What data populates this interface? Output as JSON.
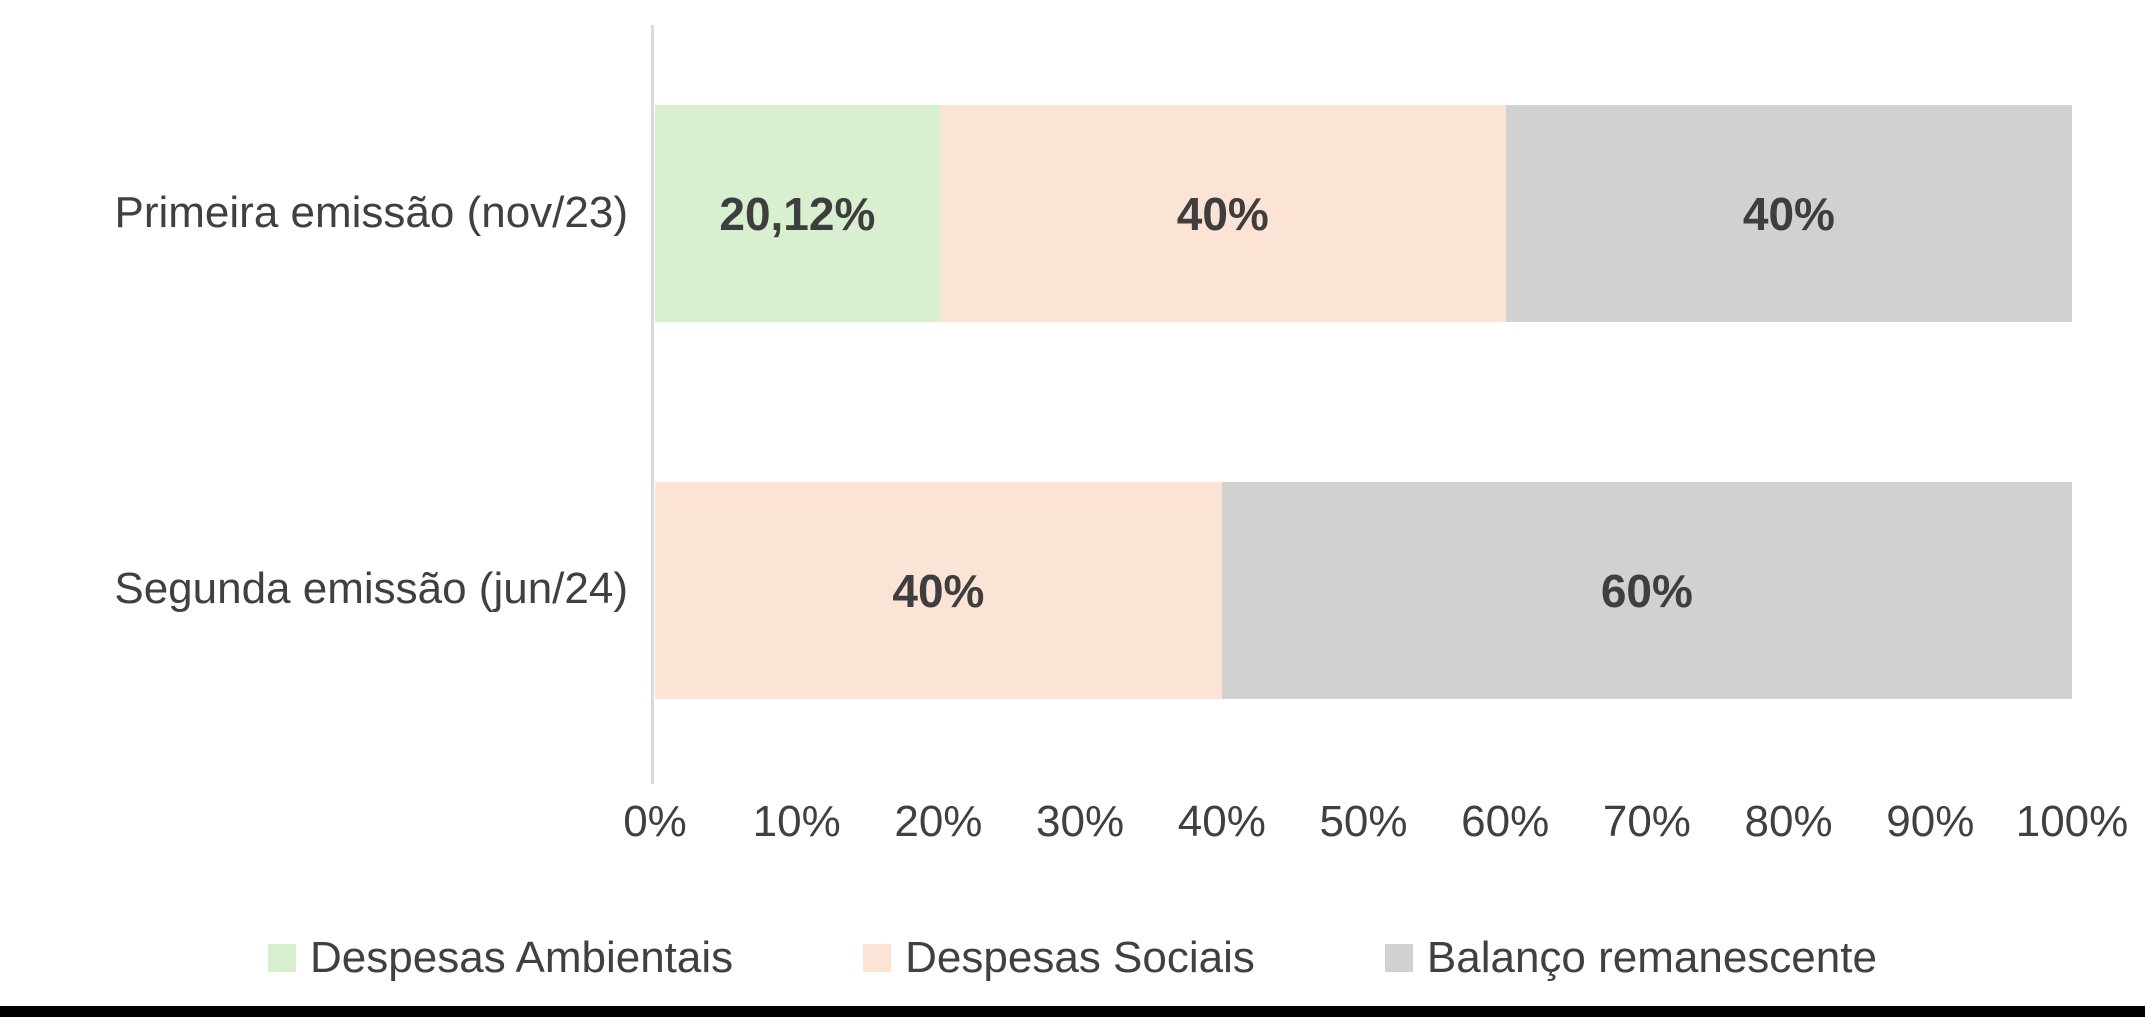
{
  "chart_data": {
    "type": "bar",
    "orientation": "horizontal",
    "stacked": true,
    "title": "",
    "categories": [
      "Primeira emissão (nov/23)",
      "Segunda emissão (jun/24)"
    ],
    "series": [
      {
        "name": "Despesas Ambientais",
        "color": "#D8EFD0",
        "values": [
          20.12,
          0
        ],
        "labels": [
          "20,12%",
          ""
        ]
      },
      {
        "name": "Despesas Sociais",
        "color": "#FBE3D6",
        "values": [
          40,
          40
        ],
        "labels": [
          "40%",
          "40%"
        ]
      },
      {
        "name": "Balanço remanescente",
        "color": "#D1D1D1",
        "values": [
          40,
          60
        ],
        "labels": [
          "40%",
          "60%"
        ]
      }
    ],
    "x_axis": {
      "min": 0,
      "max": 100,
      "tick_labels": [
        "0%",
        "10%",
        "20%",
        "30%",
        "40%",
        "50%",
        "60%",
        "70%",
        "80%",
        "90%",
        "100%"
      ]
    },
    "legend_position": "bottom",
    "grid": false
  },
  "colors": {
    "background": "#FFFFFF",
    "axis_line": "#D9D9D9",
    "category_text": "#404040",
    "tick_text": "#404040",
    "data_label_text": "#3E3E3E",
    "bottom_bar": "#000000"
  }
}
